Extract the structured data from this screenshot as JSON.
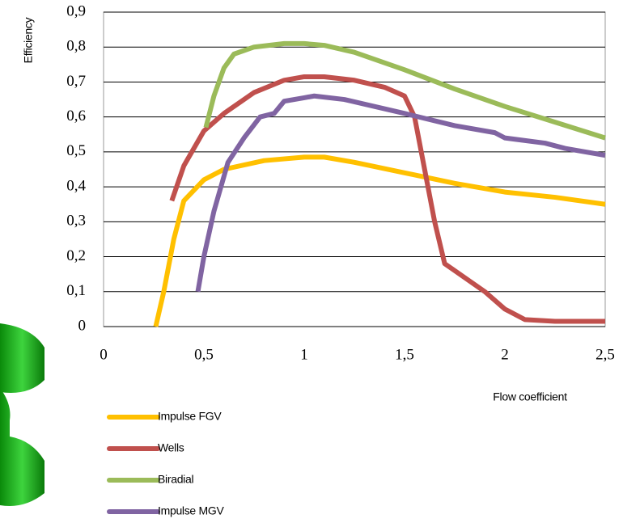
{
  "chart_data": {
    "type": "line",
    "x_label": "Flow coefficient",
    "y_label": "Efficiency",
    "xlim": [
      0,
      2.5
    ],
    "ylim": [
      0,
      0.9
    ],
    "xticks": [
      0,
      {
        "value": 0.5,
        "label": "0,5"
      },
      1,
      {
        "value": 1.5,
        "label": "1,5"
      },
      2,
      {
        "value": 2.5,
        "label": "2,5"
      }
    ],
    "yticks": [
      0,
      {
        "value": 0.1,
        "label": "0,1"
      },
      {
        "value": 0.2,
        "label": "0,2"
      },
      {
        "value": 0.3,
        "label": "0,3"
      },
      {
        "value": 0.4,
        "label": "0,4"
      },
      {
        "value": 0.5,
        "label": "0,5"
      },
      {
        "value": 0.6,
        "label": "0,6"
      },
      {
        "value": 0.7,
        "label": "0,7"
      },
      {
        "value": 0.8,
        "label": "0,8"
      },
      {
        "value": 0.9,
        "label": "0,9"
      }
    ],
    "grid": true,
    "series": [
      {
        "name": "Impulse FGV",
        "color": "#ffc000",
        "x": [
          0.26,
          0.3,
          0.35,
          0.4,
          0.5,
          0.6,
          0.8,
          1.0,
          1.1,
          1.25,
          1.5,
          1.75,
          2.0,
          2.25,
          2.5
        ],
        "values": [
          0,
          0.1,
          0.25,
          0.36,
          0.42,
          0.45,
          0.475,
          0.485,
          0.485,
          0.47,
          0.44,
          0.41,
          0.385,
          0.37,
          0.35
        ]
      },
      {
        "name": "Wells",
        "color": "#c0504d",
        "x": [
          0.34,
          0.4,
          0.5,
          0.6,
          0.75,
          0.9,
          1.0,
          1.1,
          1.25,
          1.4,
          1.5,
          1.55,
          1.6,
          1.65,
          1.7,
          1.75,
          1.9,
          2.0,
          2.1,
          2.25,
          2.5
        ],
        "values": [
          0.36,
          0.46,
          0.56,
          0.61,
          0.67,
          0.705,
          0.715,
          0.715,
          0.705,
          0.685,
          0.66,
          0.6,
          0.45,
          0.3,
          0.18,
          0.16,
          0.1,
          0.05,
          0.02,
          0.015,
          0.015
        ]
      },
      {
        "name": "Biradial",
        "color": "#9bbb59",
        "x": [
          0.51,
          0.55,
          0.6,
          0.65,
          0.75,
          0.9,
          1.0,
          1.1,
          1.25,
          1.5,
          1.75,
          2.0,
          2.25,
          2.5
        ],
        "values": [
          0.57,
          0.66,
          0.74,
          0.78,
          0.8,
          0.81,
          0.81,
          0.805,
          0.785,
          0.735,
          0.68,
          0.63,
          0.585,
          0.54
        ]
      },
      {
        "name": "Impulse MGV",
        "color": "#8064a2",
        "x": [
          0.47,
          0.5,
          0.55,
          0.62,
          0.7,
          0.78,
          0.85,
          0.9,
          1.0,
          1.05,
          1.2,
          1.5,
          1.75,
          1.95,
          2.0,
          2.2,
          2.3,
          2.5
        ],
        "values": [
          0.1,
          0.2,
          0.33,
          0.47,
          0.54,
          0.6,
          0.61,
          0.645,
          0.655,
          0.66,
          0.65,
          0.61,
          0.575,
          0.555,
          0.54,
          0.525,
          0.51,
          0.49
        ]
      }
    ]
  }
}
